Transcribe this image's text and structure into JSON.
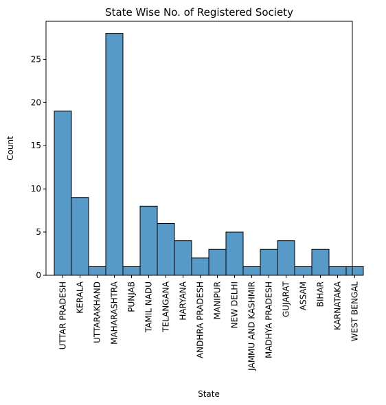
{
  "chart_data": {
    "type": "bar",
    "title": "State Wise No. of Registered Society",
    "xlabel": "State",
    "ylabel": "Count",
    "categories": [
      "UTTAR PRADESH",
      "KERALA",
      "UTTARAKHAND",
      "MAHARASHTRA",
      "PUNJAB",
      "TAMIL NADU",
      "TELANGANA",
      "HARYANA",
      "ANDHRA PRADESH",
      "MANIPUR",
      "NEW DELHI",
      "JAMMU AND KASHMIR",
      "MADHYA PRADESH",
      "GUJARAT",
      "ASSAM",
      "BIHAR",
      "KARNATAKA",
      "WEST BENGAL"
    ],
    "values": [
      19,
      9,
      1,
      28,
      1,
      8,
      6,
      4,
      2,
      3,
      5,
      1,
      3,
      4,
      1,
      3,
      1,
      1
    ],
    "ylim": [
      0,
      29.4
    ],
    "yticks": [
      0,
      5,
      10,
      15,
      20,
      25
    ],
    "grid": false,
    "bar_color": "#5799c7",
    "edge_color": "#000000"
  }
}
